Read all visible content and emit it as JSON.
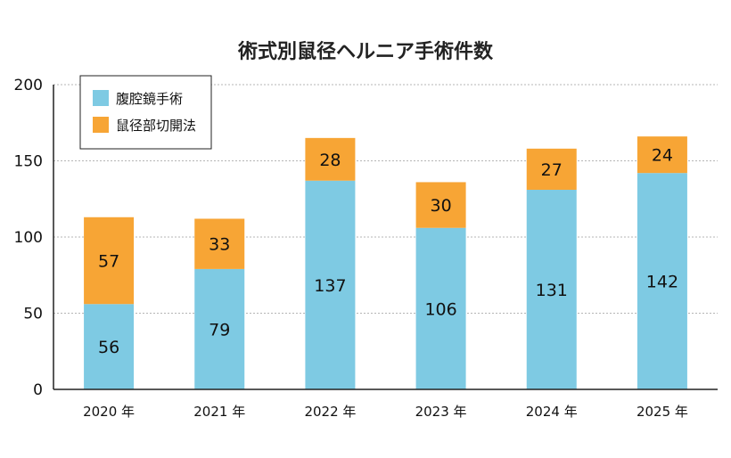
{
  "chart_data": {
    "type": "bar",
    "stacked": true,
    "title": "術式別鼠径ヘルニア手術件数",
    "xlabel": "",
    "ylabel": "",
    "ylim": [
      0,
      200
    ],
    "yticks": [
      0,
      50,
      100,
      150,
      200
    ],
    "grid": true,
    "legend": "top-left",
    "categories": [
      "2020 年",
      "2021 年",
      "2022 年",
      "2023 年",
      "2024 年",
      "2025 年"
    ],
    "series": [
      {
        "name": "腹腔鏡手術",
        "color": "#7ecae3",
        "values": [
          56,
          79,
          137,
          106,
          131,
          142
        ]
      },
      {
        "name": "鼠径部切開法",
        "color": "#f7a535",
        "values": [
          57,
          33,
          28,
          30,
          27,
          24
        ]
      }
    ]
  }
}
